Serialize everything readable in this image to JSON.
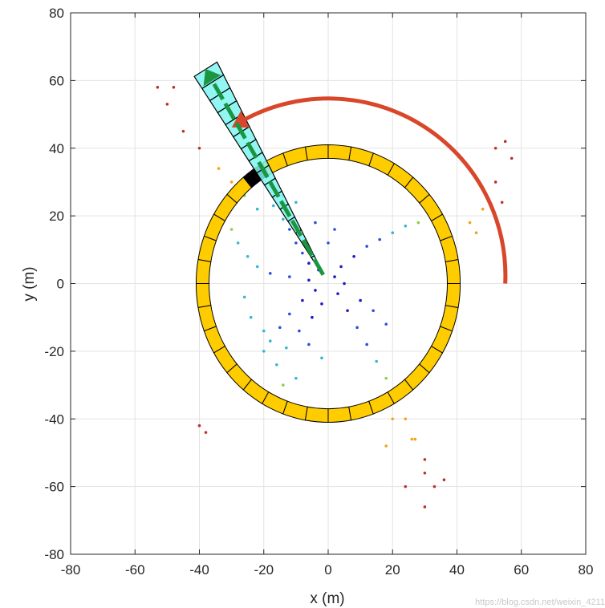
{
  "chart_data": {
    "type": "scatter",
    "xlabel": "x (m)",
    "ylabel": "y (m)",
    "xlim": [
      -80,
      80
    ],
    "ylim": [
      -80,
      80
    ],
    "xticks": [
      -80,
      -60,
      -40,
      -20,
      0,
      20,
      40,
      60,
      80
    ],
    "yticks": [
      -80,
      -60,
      -40,
      -20,
      0,
      20,
      40,
      60,
      80
    ],
    "grid": true,
    "ring": {
      "center": [
        0,
        0
      ],
      "inner_radius": 37,
      "outer_radius": 41,
      "segments": 36,
      "color": "#ffcc00"
    },
    "highlighted_segment_angle_deg": 122,
    "wedge": {
      "angle_deg": 121,
      "inner_radius": 5,
      "outer_radius": 74,
      "half_width_deg": 3.2,
      "bins": 16,
      "color": "#7ff5f0"
    },
    "direction_arrow": {
      "angle_deg": 121,
      "from_radius": 3,
      "to_radius": 74,
      "color": "#1a9641"
    },
    "rotation_arc": {
      "radius": 55,
      "start_deg": 0,
      "end_deg": 123,
      "color": "#d9472b"
    },
    "point_clusters": [
      {
        "name": "main",
        "pts": [
          [
            2,
            2
          ],
          [
            -3,
            4
          ],
          [
            -6,
            6
          ],
          [
            -8,
            9
          ],
          [
            -10,
            12
          ],
          [
            -12,
            16
          ],
          [
            -14,
            19
          ],
          [
            -17,
            23
          ],
          [
            4,
            5
          ],
          [
            8,
            8
          ],
          [
            12,
            11
          ],
          [
            16,
            13
          ],
          [
            20,
            15
          ],
          [
            24,
            17
          ],
          [
            28,
            18
          ],
          [
            32,
            20
          ],
          [
            35,
            21
          ],
          [
            3,
            -3
          ],
          [
            6,
            -8
          ],
          [
            9,
            -13
          ],
          [
            12,
            -18
          ],
          [
            15,
            -23
          ],
          [
            18,
            -28
          ],
          [
            21,
            -34
          ],
          [
            24,
            -40
          ],
          [
            27,
            -46
          ],
          [
            30,
            -52
          ],
          [
            -4,
            -2
          ],
          [
            -8,
            -5
          ],
          [
            -12,
            -9
          ],
          [
            -15,
            -13
          ],
          [
            -18,
            -17
          ],
          [
            -20,
            -20
          ],
          [
            -6,
            1
          ],
          [
            -12,
            2
          ],
          [
            -18,
            3
          ],
          [
            -22,
            5
          ],
          [
            -25,
            8
          ],
          [
            -28,
            12
          ],
          [
            -30,
            16
          ],
          [
            -32,
            20
          ],
          [
            5,
            0
          ],
          [
            -2,
            -6
          ],
          [
            -5,
            -10
          ],
          [
            -9,
            -14
          ],
          [
            -13,
            -19
          ],
          [
            -16,
            -24
          ],
          [
            -14,
            -30
          ],
          [
            -10,
            -28
          ],
          [
            10,
            -5
          ],
          [
            14,
            -8
          ],
          [
            18,
            -12
          ],
          [
            -24,
            -10
          ],
          [
            -26,
            -4
          ],
          [
            -20,
            -14
          ],
          [
            -6,
            -18
          ],
          [
            -2,
            -22
          ],
          [
            -22,
            22
          ],
          [
            -26,
            26
          ],
          [
            -30,
            30
          ],
          [
            -34,
            34
          ],
          [
            -40,
            40
          ],
          [
            -45,
            45
          ],
          [
            -50,
            53
          ],
          [
            -53,
            58
          ],
          [
            -48,
            58
          ],
          [
            20,
            -40
          ],
          [
            26,
            -46
          ],
          [
            30,
            -56
          ],
          [
            33,
            -60
          ],
          [
            36,
            -58
          ],
          [
            30,
            -66
          ],
          [
            24,
            -60
          ],
          [
            18,
            -48
          ],
          [
            -40,
            -42
          ],
          [
            -38,
            -44
          ],
          [
            52,
            40
          ],
          [
            55,
            42
          ],
          [
            57,
            37
          ],
          [
            52,
            30
          ],
          [
            54,
            24
          ],
          [
            48,
            22
          ],
          [
            46,
            15
          ],
          [
            44,
            18
          ],
          [
            40,
            8
          ],
          [
            38,
            4
          ],
          [
            0,
            12
          ],
          [
            2,
            16
          ],
          [
            -4,
            18
          ],
          [
            -10,
            24
          ],
          [
            -14,
            26
          ],
          [
            -40,
            -6
          ]
        ]
      }
    ]
  },
  "watermark": "https://blog.csdn.net/weixin_4211"
}
